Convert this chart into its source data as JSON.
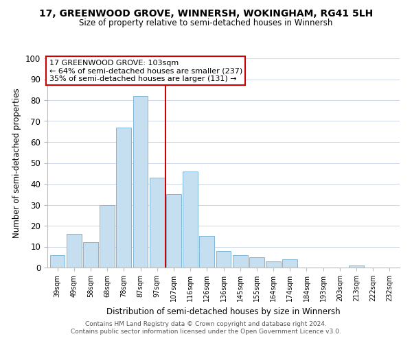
{
  "title": "17, GREENWOOD GROVE, WINNERSH, WOKINGHAM, RG41 5LH",
  "subtitle": "Size of property relative to semi-detached houses in Winnersh",
  "xlabel": "Distribution of semi-detached houses by size in Winnersh",
  "ylabel": "Number of semi-detached properties",
  "bin_labels": [
    "39sqm",
    "49sqm",
    "58sqm",
    "68sqm",
    "78sqm",
    "87sqm",
    "97sqm",
    "107sqm",
    "116sqm",
    "126sqm",
    "136sqm",
    "145sqm",
    "155sqm",
    "164sqm",
    "174sqm",
    "184sqm",
    "193sqm",
    "203sqm",
    "213sqm",
    "222sqm",
    "232sqm"
  ],
  "bar_heights": [
    6,
    16,
    12,
    30,
    67,
    82,
    43,
    35,
    46,
    15,
    8,
    6,
    5,
    3,
    4,
    0,
    0,
    0,
    1,
    0,
    0
  ],
  "bar_color": "#c5dff0",
  "bar_edge_color": "#7fb8d8",
  "vline_x_index": 7,
  "vline_color": "#cc0000",
  "annotation_line1": "17 GREENWOOD GROVE: 103sqm",
  "annotation_line2": "← 64% of semi-detached houses are smaller (237)",
  "annotation_line3": "35% of semi-detached houses are larger (131) →",
  "annotation_box_color": "#ffffff",
  "annotation_box_edge_color": "#cc0000",
  "ylim": [
    0,
    100
  ],
  "yticks": [
    0,
    10,
    20,
    30,
    40,
    50,
    60,
    70,
    80,
    90,
    100
  ],
  "footer_line1": "Contains HM Land Registry data © Crown copyright and database right 2024.",
  "footer_line2": "Contains public sector information licensed under the Open Government Licence v3.0.",
  "background_color": "#ffffff",
  "grid_color": "#ccd6e8"
}
